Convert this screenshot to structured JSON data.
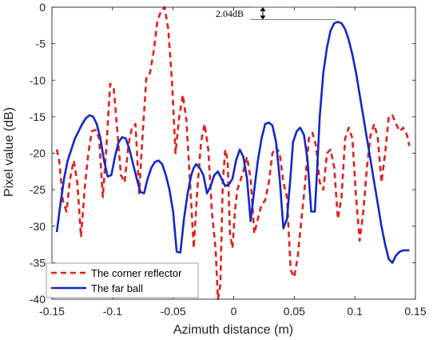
{
  "chart_data": {
    "type": "line",
    "title": "",
    "xlabel": "Azimuth distance (m)",
    "ylabel": "Pixel value (dB)",
    "xlim": [
      -0.15,
      0.15
    ],
    "ylim": [
      -40,
      0
    ],
    "xticks": [
      "-0.15",
      "-0.1",
      "-0.05",
      "0",
      "0.05",
      "0.1",
      "0.15"
    ],
    "yticks": [
      "0",
      "-5",
      "-10",
      "-15",
      "-20",
      "-25",
      "-30",
      "-35",
      "-40"
    ],
    "grid": false,
    "legend": "bottom-left",
    "annotation": "2.04dB",
    "series": [
      {
        "name": "The corner reflector",
        "style": "dashed",
        "color": "#e0201b",
        "x": [
          -0.146,
          -0.144,
          -0.141,
          -0.138,
          -0.135,
          -0.132,
          -0.129,
          -0.126,
          -0.123,
          -0.12,
          -0.117,
          -0.114,
          -0.111,
          -0.108,
          -0.105,
          -0.102,
          -0.099,
          -0.096,
          -0.093,
          -0.09,
          -0.087,
          -0.084,
          -0.081,
          -0.078,
          -0.075,
          -0.072,
          -0.069,
          -0.066,
          -0.063,
          -0.06,
          -0.057,
          -0.054,
          -0.051,
          -0.048,
          -0.045,
          -0.042,
          -0.039,
          -0.036,
          -0.033,
          -0.03,
          -0.027,
          -0.024,
          -0.021,
          -0.018,
          -0.015,
          -0.013,
          -0.011,
          -0.009,
          -0.007,
          -0.005,
          -0.003,
          -0.001,
          0.001,
          0.003,
          0.005,
          0.008,
          0.011,
          0.014,
          0.017,
          0.02,
          0.023,
          0.026,
          0.029,
          0.032,
          0.035,
          0.038,
          0.041,
          0.044,
          0.047,
          0.05,
          0.053,
          0.056,
          0.059,
          0.062,
          0.065,
          0.068,
          0.071,
          0.074,
          0.077,
          0.08,
          0.083,
          0.086,
          0.089,
          0.092,
          0.095,
          0.098,
          0.101,
          0.104,
          0.107,
          0.11,
          0.113,
          0.116,
          0.119,
          0.122,
          0.125,
          0.128,
          0.131,
          0.134,
          0.137,
          0.14,
          0.143,
          0.145
        ],
        "y": [
          -19.5,
          -21.0,
          -26.5,
          -28.0,
          -23.5,
          -21.0,
          -24.0,
          -31.5,
          -25.0,
          -20.0,
          -17.0,
          -16.8,
          -18.0,
          -26.0,
          -19.0,
          -10.5,
          -11.0,
          -17.0,
          -23.0,
          -24.0,
          -19.0,
          -16.5,
          -16.0,
          -25.5,
          -17.0,
          -9.5,
          -9.0,
          -6.0,
          -2.0,
          -0.5,
          0.0,
          -3.0,
          -10.0,
          -20.0,
          -15.0,
          -12.0,
          -15.5,
          -24.0,
          -33.0,
          -25.0,
          -18.5,
          -16.0,
          -19.5,
          -28.0,
          -33.0,
          -40.0,
          -38.0,
          -24.0,
          -19.5,
          -21.0,
          -31.0,
          -33.0,
          -28.0,
          -25.0,
          -24.0,
          -22.5,
          -20.5,
          -23.5,
          -31.0,
          -29.0,
          -27.0,
          -26.5,
          -24.0,
          -20.0,
          -19.2,
          -20.0,
          -24.0,
          -26.0,
          -36.0,
          -37.0,
          -34.0,
          -29.0,
          -24.0,
          -18.0,
          -17.2,
          -19.0,
          -24.0,
          -25.0,
          -20.0,
          -19.5,
          -22.0,
          -29.0,
          -26.0,
          -18.0,
          -16.5,
          -18.0,
          -26.0,
          -32.0,
          -28.0,
          -22.0,
          -17.5,
          -16.0,
          -18.0,
          -24.0,
          -20.0,
          -15.0,
          -14.8,
          -16.0,
          -17.0,
          -16.5,
          -17.5,
          -19.0
        ]
      },
      {
        "name": "The far ball",
        "style": "solid",
        "color": "#1328c8",
        "x": [
          -0.146,
          -0.143,
          -0.14,
          -0.137,
          -0.134,
          -0.131,
          -0.128,
          -0.125,
          -0.122,
          -0.119,
          -0.116,
          -0.113,
          -0.11,
          -0.107,
          -0.104,
          -0.101,
          -0.098,
          -0.095,
          -0.092,
          -0.089,
          -0.086,
          -0.083,
          -0.08,
          -0.077,
          -0.074,
          -0.071,
          -0.068,
          -0.065,
          -0.062,
          -0.059,
          -0.056,
          -0.053,
          -0.05,
          -0.047,
          -0.044,
          -0.041,
          -0.038,
          -0.035,
          -0.033,
          -0.031,
          -0.028,
          -0.025,
          -0.022,
          -0.019,
          -0.016,
          -0.013,
          -0.01,
          -0.007,
          -0.004,
          -0.001,
          0.002,
          0.005,
          0.008,
          0.011,
          0.014,
          0.017,
          0.02,
          0.023,
          0.026,
          0.029,
          0.032,
          0.035,
          0.038,
          0.041,
          0.044,
          0.047,
          0.049,
          0.052,
          0.055,
          0.058,
          0.061,
          0.064,
          0.067,
          0.069,
          0.071,
          0.074,
          0.077,
          0.08,
          0.083,
          0.086,
          0.089,
          0.092,
          0.095,
          0.098,
          0.101,
          0.104,
          0.107,
          0.11,
          0.113,
          0.116,
          0.119,
          0.122,
          0.125,
          0.128,
          0.131,
          0.134,
          0.137,
          0.14,
          0.143,
          0.145
        ],
        "y": [
          -30.8,
          -27.0,
          -23.5,
          -21.0,
          -19.5,
          -18.0,
          -17.0,
          -16.0,
          -15.2,
          -14.8,
          -15.0,
          -16.0,
          -18.0,
          -21.0,
          -23.2,
          -23.0,
          -20.5,
          -18.5,
          -17.8,
          -18.0,
          -19.5,
          -21.5,
          -23.5,
          -25.3,
          -25.5,
          -23.5,
          -22.0,
          -21.2,
          -21.0,
          -21.5,
          -23.0,
          -25.0,
          -28.0,
          -33.5,
          -33.6,
          -29.0,
          -25.5,
          -23.0,
          -22.0,
          -21.5,
          -22.0,
          -23.0,
          -25.5,
          -24.5,
          -23.0,
          -22.5,
          -23.5,
          -24.5,
          -24.3,
          -23.5,
          -21.0,
          -19.5,
          -20.5,
          -23.5,
          -29.3,
          -25.0,
          -21.0,
          -18.0,
          -16.0,
          -15.8,
          -16.2,
          -18.5,
          -23.5,
          -30.3,
          -29.0,
          -23.0,
          -18.5,
          -17.0,
          -16.5,
          -17.5,
          -21.0,
          -28.0,
          -28.0,
          -22.0,
          -15.0,
          -9.0,
          -5.5,
          -3.2,
          -2.2,
          -2.0,
          -2.2,
          -3.0,
          -4.5,
          -6.5,
          -9.0,
          -12.0,
          -15.0,
          -18.0,
          -21.0,
          -24.0,
          -27.0,
          -30.0,
          -32.5,
          -34.5,
          -35.0,
          -34.0,
          -33.5,
          -33.3,
          -33.3,
          -33.3
        ]
      }
    ]
  }
}
